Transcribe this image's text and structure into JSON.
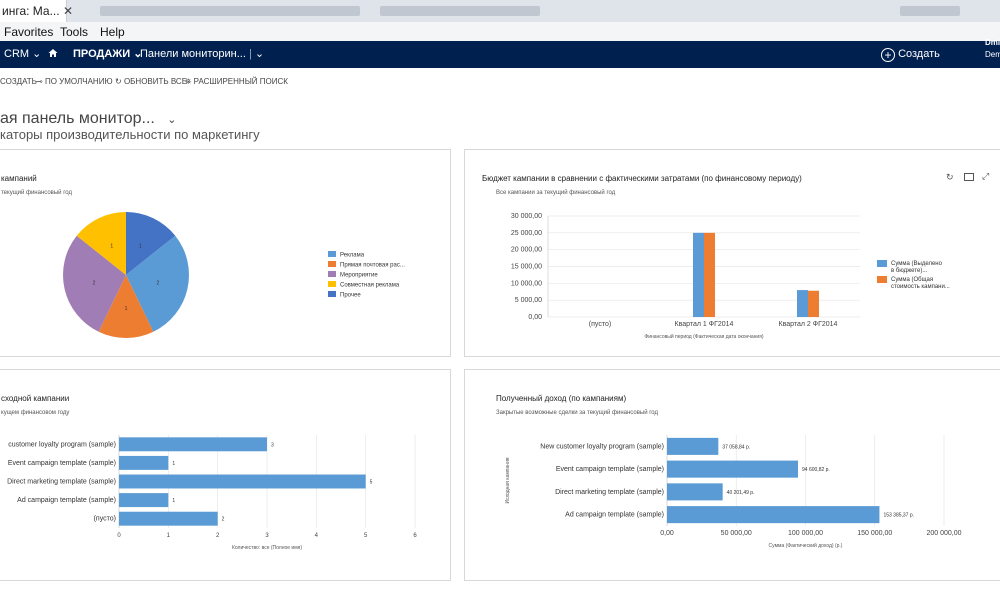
{
  "browser": {
    "tab_title": "инга: Ма...",
    "tab_close": "✕"
  },
  "menu": [
    "Favorites",
    "Tools",
    "Help"
  ],
  "nav": {
    "app": "CRM",
    "area": "ПРОДАЖИ",
    "page": "Панели мониторин...",
    "create": "Создать",
    "user_name": "Dmi",
    "user_org": "Dem"
  },
  "commands": {
    "create": "СОЗДАТЬ",
    "default": "ПО УМОЛЧАНИЮ",
    "refresh_all": "ОБНОВИТЬ ВСЕ",
    "advanced_find": "РАСШИРЕННЫЙ ПОИСК"
  },
  "dashboard": {
    "title": "ая панель монитор...",
    "subtitle": "каторы производительности по маркетингу"
  },
  "colors": {
    "nav_bg": "#002050",
    "blue": "#5b9bd5",
    "orange": "#ed7d31",
    "purple": "#a17db6",
    "yellow": "#ffc000",
    "navy": "#4472c4"
  },
  "panel_pie": {
    "title": "кампаний",
    "subtitle": "текущий финансовый год",
    "chart_data": {
      "type": "pie",
      "slices": [
        {
          "name": "Реклама",
          "value": 2,
          "color": "#5b9bd5"
        },
        {
          "name": "Прямая почтовая рас...",
          "value": 1,
          "color": "#ed7d31"
        },
        {
          "name": "Мероприятие",
          "value": 2,
          "color": "#a17db6"
        },
        {
          "name": "Совместная реклама",
          "value": 1,
          "color": "#ffc000"
        },
        {
          "name": "Прочее",
          "value": 1,
          "color": "#4472c4"
        }
      ],
      "legend_position": "right"
    }
  },
  "panel_budget": {
    "title": "Бюджет кампании в сравнении с фактическими затратами (по финансовому периоду)",
    "subtitle": "Все кампании за текущий финансовый год",
    "icons": [
      "refresh-icon",
      "grid-icon",
      "expand-icon"
    ],
    "chart_data": {
      "type": "bar",
      "categories": [
        "(пусто)",
        "Квартал 1 ФГ2014",
        "Квартал 2 ФГ2014"
      ],
      "series": [
        {
          "name": "Сумма (Выделено в бюджете)...",
          "values": [
            0,
            25000,
            8000
          ],
          "color": "#5b9bd5"
        },
        {
          "name": "Сумма (Общая стоимость кампани...",
          "values": [
            0,
            25000,
            7800
          ],
          "color": "#ed7d31"
        }
      ],
      "ylim": [
        0,
        30000
      ],
      "yticks": [
        "30 000,00",
        "25 000,00",
        "20 000,00",
        "15 000,00",
        "10 000,00",
        "5 000,00",
        "0,00"
      ],
      "xlabel": "Финансовый период (Фактическая дата окончания)",
      "legend_position": "right",
      "grid": true
    }
  },
  "panel_activity": {
    "title": "сходной кампании",
    "subtitle": "кущем финансовом году",
    "chart_data": {
      "type": "bar",
      "orientation": "horizontal",
      "categories": [
        "customer loyalty program (sample)",
        "Event campaign template (sample)",
        "Direct marketing template (sample)",
        "Ad campaign template (sample)",
        "(пусто)"
      ],
      "values": [
        3,
        1,
        5,
        1,
        2
      ],
      "data_labels": [
        "3",
        "1",
        "5",
        "1",
        "2"
      ],
      "xlim": [
        0,
        6
      ],
      "xticks": [
        "0",
        "1",
        "2",
        "3",
        "4",
        "5",
        "6"
      ],
      "xlabel": "Количество: все (Полное имя)",
      "grid": true
    }
  },
  "panel_revenue": {
    "title": "Полученный доход (по кампаниям)",
    "subtitle": "Закрытые возможные сделки за текущий финансовый год",
    "chart_data": {
      "type": "bar",
      "orientation": "horizontal",
      "categories": [
        "New customer loyalty program (sample)",
        "Event campaign template (sample)",
        "Direct marketing template (sample)",
        "Ad campaign template (sample)"
      ],
      "values": [
        37058.84,
        94600.82,
        40201.49,
        153385.37
      ],
      "data_labels": [
        "37 058,84 р.",
        "94 600,82 р.",
        "40 201,49 р.",
        "153 385,37 р."
      ],
      "xlim": [
        0,
        200000
      ],
      "xticks": [
        "0,00",
        "50 000,00",
        "100 000,00",
        "150 000,00",
        "200 000,00"
      ],
      "xlabel": "Сумма (Фактический доход) (р.)",
      "ylabel": "Исходная кампания",
      "grid": true
    }
  }
}
